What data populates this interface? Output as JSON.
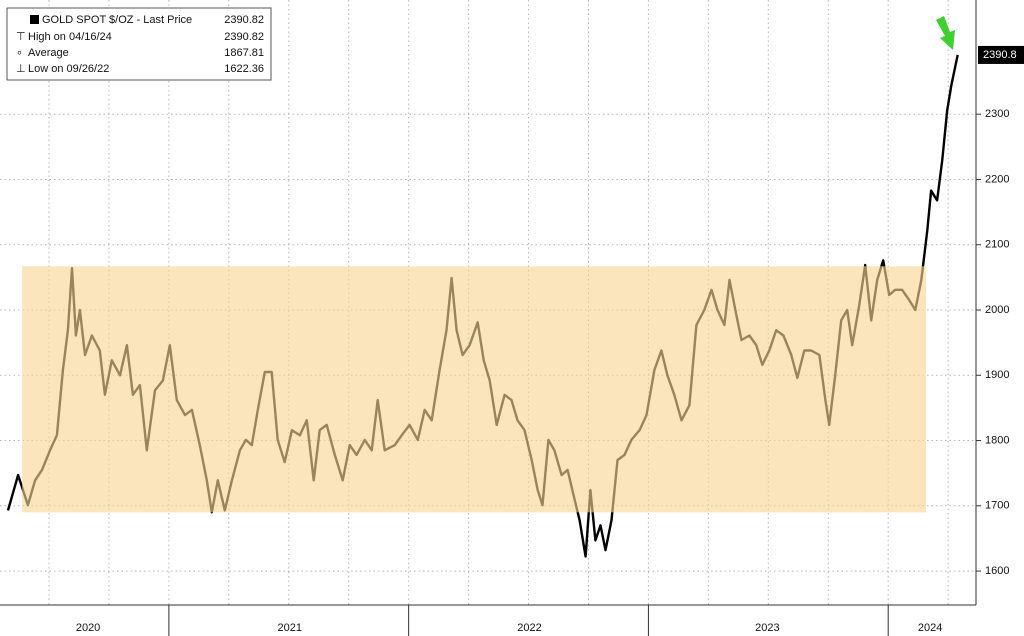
{
  "chart_data": {
    "type": "line",
    "series": [
      {
        "name": "GOLD SPOT $/OZ - Last Price",
        "color": "#000000",
        "last_value": 2390.82,
        "x": [
          2020.329,
          2020.371,
          2020.412,
          2020.442,
          2020.471,
          2020.504,
          2020.533,
          2020.558,
          2020.579,
          2020.596,
          2020.612,
          2020.629,
          2020.65,
          2020.679,
          2020.712,
          2020.733,
          2020.762,
          2020.796,
          2020.825,
          2020.85,
          2020.879,
          2020.908,
          2020.942,
          2020.975,
          2021.004,
          2021.033,
          2021.067,
          2021.096,
          2021.129,
          2021.158,
          2021.179,
          2021.204,
          2021.233,
          2021.263,
          2021.296,
          2021.321,
          2021.346,
          2021.371,
          2021.4,
          2021.429,
          2021.454,
          2021.483,
          2021.513,
          2021.546,
          2021.575,
          2021.604,
          2021.629,
          2021.658,
          2021.692,
          2021.725,
          2021.754,
          2021.783,
          2021.817,
          2021.846,
          2021.871,
          2021.9,
          2021.942,
          2021.971,
          2022.004,
          2022.038,
          2022.067,
          2022.096,
          2022.129,
          2022.158,
          2022.179,
          2022.2,
          2022.225,
          2022.254,
          2022.288,
          2022.313,
          2022.338,
          2022.367,
          2022.4,
          2022.429,
          2022.454,
          2022.483,
          2022.513,
          2022.538,
          2022.558,
          2022.583,
          2022.608,
          2022.638,
          2022.663,
          2022.688,
          2022.713,
          2022.738,
          2022.758,
          2022.779,
          2022.8,
          2022.821,
          2022.846,
          2022.871,
          2022.9,
          2022.929,
          2022.963,
          2022.992,
          2023.025,
          2023.054,
          2023.079,
          2023.108,
          2023.138,
          2023.171,
          2023.2,
          2023.233,
          2023.263,
          2023.288,
          2023.317,
          2023.338,
          2023.367,
          2023.388,
          2023.421,
          2023.45,
          2023.475,
          2023.504,
          2023.533,
          2023.563,
          2023.596,
          2023.621,
          2023.65,
          2023.679,
          2023.713,
          2023.738,
          2023.754,
          2023.779,
          2023.804,
          2023.829,
          2023.85,
          2023.879,
          2023.904,
          2023.929,
          2023.954,
          2023.979,
          2024.004,
          2024.029,
          2024.058,
          2024.088,
          2024.113,
          2024.138,
          2024.163,
          2024.179,
          2024.204,
          2024.225,
          2024.246,
          2024.263,
          2024.29
        ],
        "values": [
          1693,
          1747,
          1701,
          1739,
          1755,
          1785,
          1808,
          1908,
          1969,
          2064,
          1961,
          2000,
          1931,
          1961,
          1938,
          1870,
          1923,
          1900,
          1946,
          1870,
          1885,
          1785,
          1877,
          1892,
          1946,
          1862,
          1839,
          1847,
          1793,
          1739,
          1690,
          1739,
          1693,
          1739,
          1785,
          1801,
          1793,
          1847,
          1905,
          1905,
          1801,
          1767,
          1816,
          1808,
          1831,
          1739,
          1816,
          1824,
          1778,
          1739,
          1793,
          1778,
          1801,
          1785,
          1862,
          1785,
          1793,
          1808,
          1824,
          1801,
          1847,
          1831,
          1908,
          1969,
          2049,
          1969,
          1931,
          1946,
          1981,
          1923,
          1892,
          1824,
          1870,
          1862,
          1831,
          1816,
          1770,
          1724,
          1701,
          1801,
          1785,
          1747,
          1755,
          1716,
          1678,
          1622.36,
          1724,
          1647,
          1670,
          1632,
          1678,
          1770,
          1778,
          1801,
          1816,
          1839,
          1908,
          1938,
          1900,
          1870,
          1831,
          1854,
          1977,
          2000,
          2031,
          2000,
          1977,
          2046,
          1992,
          1954,
          1961,
          1946,
          1916,
          1938,
          1969,
          1961,
          1931,
          1896,
          1938,
          1938,
          1931,
          1862,
          1824,
          1900,
          1984,
          2000,
          1946,
          2007,
          2069,
          1984,
          2046,
          2076,
          2023,
          2031,
          2031,
          2015,
          2000,
          2046,
          2122,
          2183,
          2168,
          2229,
          2306,
          2344,
          2390.82
        ]
      }
    ],
    "stats": [
      {
        "label": "High on 04/16/24",
        "value": 2390.82
      },
      {
        "label": "Average",
        "value": 1867.81
      },
      {
        "label": "Low on 09/26/22",
        "value": 1622.36
      }
    ],
    "last_price": {
      "value": 2390.82,
      "label": "2390.8"
    },
    "band": {
      "x": [
        2020.388,
        2024.158
      ],
      "y": [
        1690,
        2067
      ],
      "color": "#f8d594"
    },
    "xlim": [
      2020.329,
      2024.362
    ],
    "ylim": [
      1548,
      2475
    ],
    "yticks": [
      1600,
      1700,
      1800,
      1900,
      2000,
      2100,
      2200,
      2300
    ],
    "xticks": [
      {
        "value": 2020.663,
        "label": "2020"
      },
      {
        "value": 2021.504,
        "label": "2021"
      },
      {
        "value": 2022.504,
        "label": "2022"
      },
      {
        "value": 2023.496,
        "label": "2023"
      },
      {
        "value": 2024.175,
        "label": "2024"
      }
    ],
    "year_boundaries": [
      2021,
      2022,
      2023,
      2024
    ],
    "xgrid": [
      2020.5,
      2020.75,
      2021,
      2021.25,
      2021.5,
      2021.75,
      2022,
      2022.25,
      2022.5,
      2022.75,
      2023,
      2023.25,
      2023.5,
      2023.75,
      2024,
      2024.25
    ],
    "grid": true
  }
}
